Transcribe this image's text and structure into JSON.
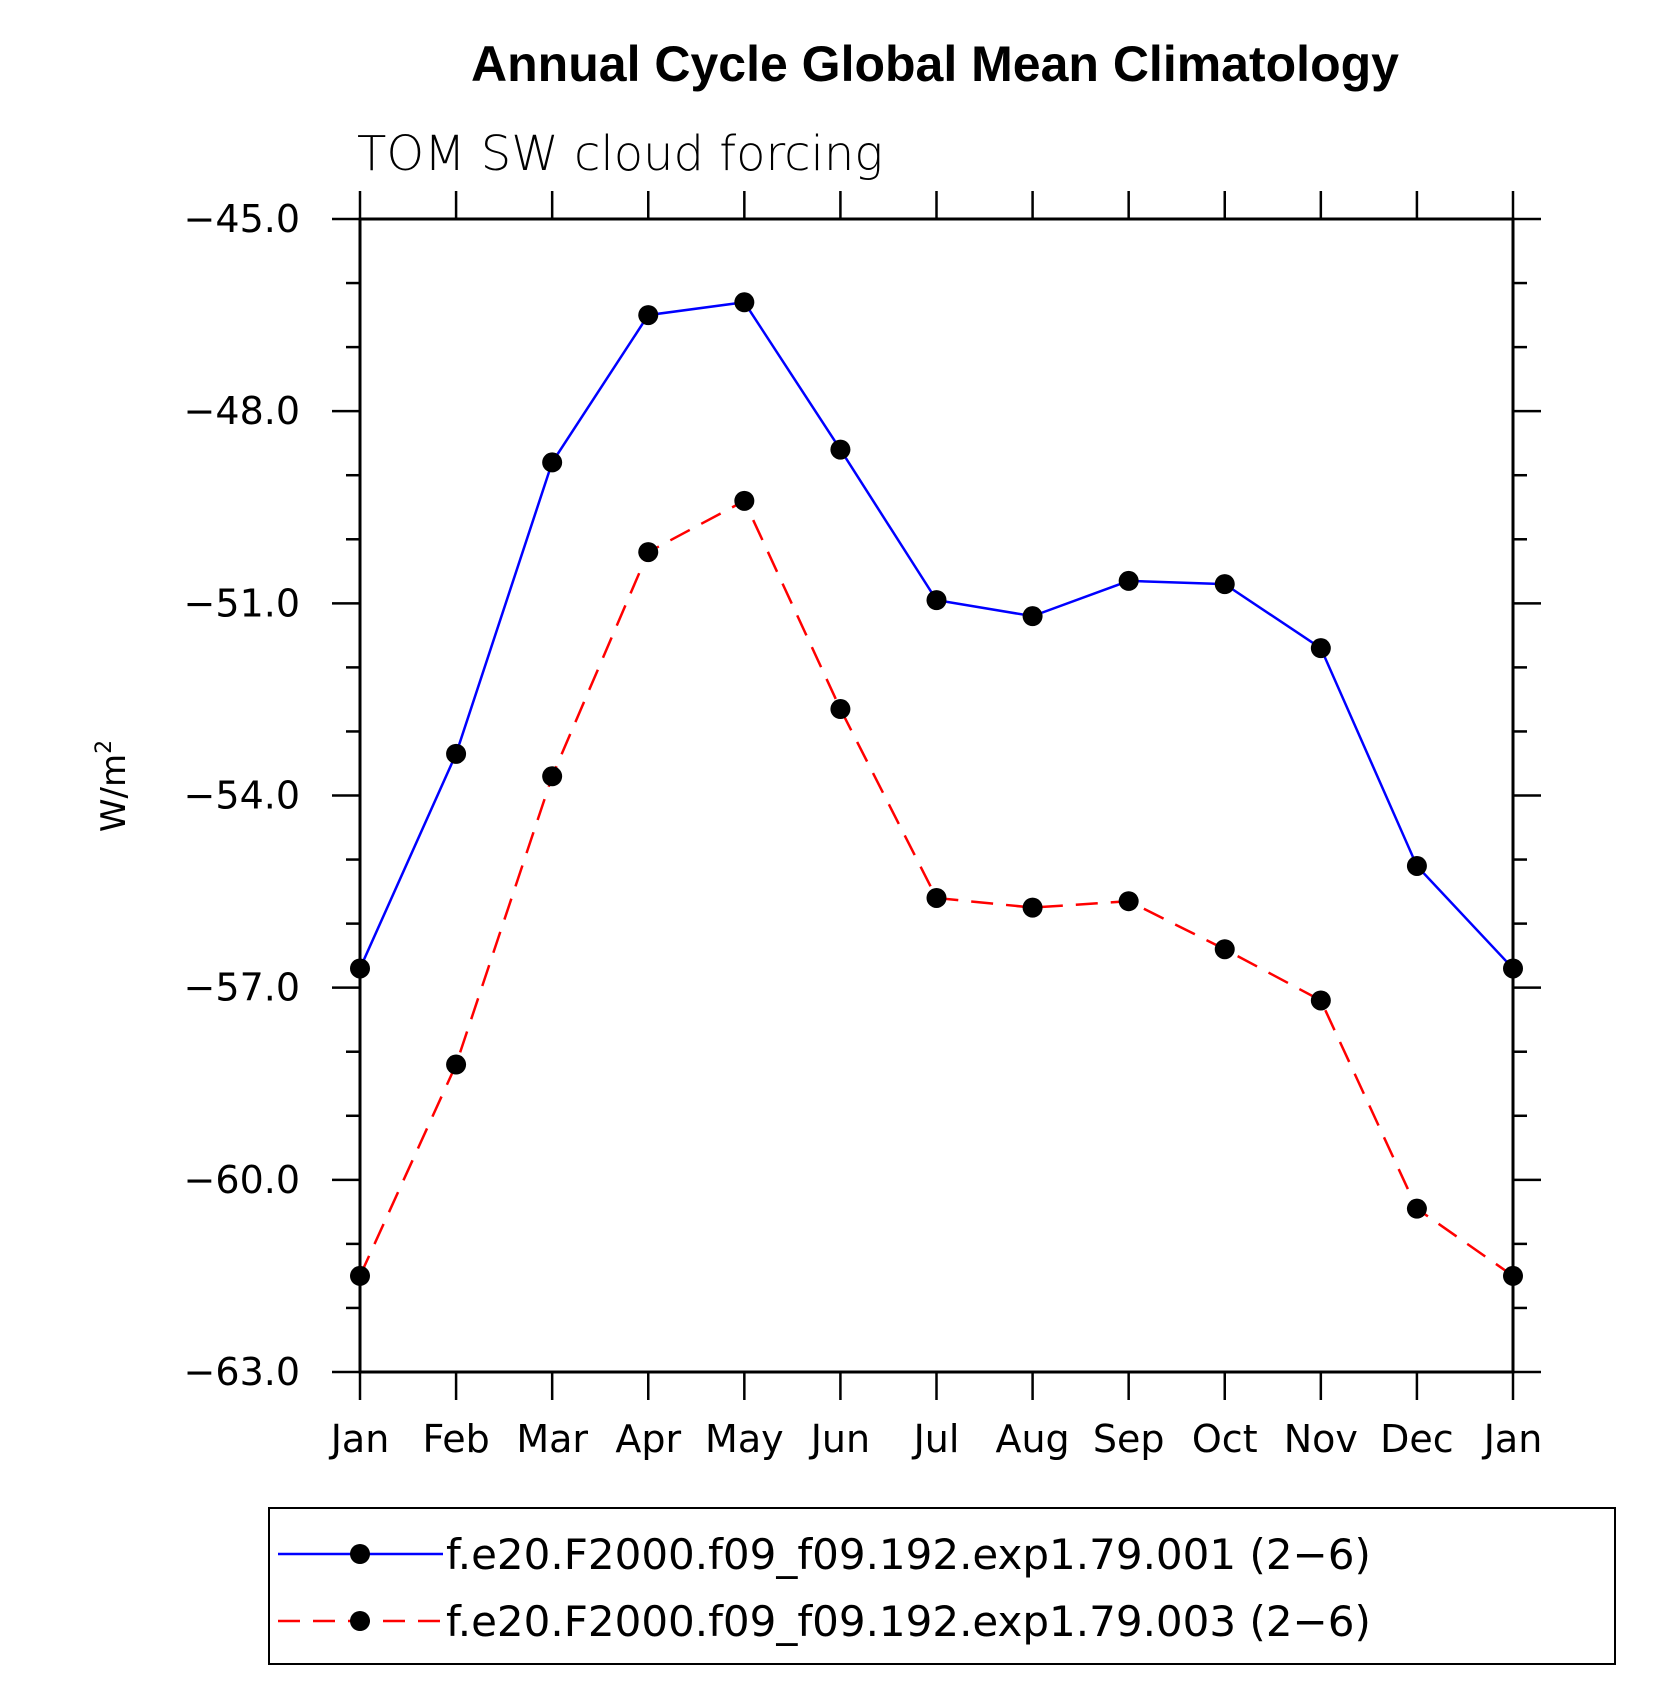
{
  "chart_data": {
    "type": "line",
    "title": "Annual Cycle Global Mean Climatology",
    "subtitle": "TOM SW cloud forcing",
    "ylabel": "W/m",
    "ylabel_sup": "2",
    "categories": [
      "Jan",
      "Feb",
      "Mar",
      "Apr",
      "May",
      "Jun",
      "Jul",
      "Aug",
      "Sep",
      "Oct",
      "Nov",
      "Dec",
      "Jan"
    ],
    "ylim": [
      -63.0,
      -45.0
    ],
    "yticks": [
      -45.0,
      -48.0,
      -51.0,
      -54.0,
      -57.0,
      -60.0,
      -63.0
    ],
    "ytick_labels": [
      "−45.0",
      "−48.0",
      "−51.0",
      "−54.0",
      "−57.0",
      "−60.0",
      "−63.0"
    ],
    "grid": false,
    "legend_position": "bottom",
    "series": [
      {
        "name": "f.e20.F2000.f09_f09.192.exp1.79.001 (2−6)",
        "color": "#0000ff",
        "style": "solid",
        "values": [
          -56.7,
          -53.35,
          -48.8,
          -46.5,
          -46.3,
          -48.6,
          -50.95,
          -51.2,
          -50.65,
          -50.7,
          -51.7,
          -55.1,
          -56.7
        ]
      },
      {
        "name": "f.e20.F2000.f09_f09.192.exp1.79.003 (2−6)",
        "color": "#ff0000",
        "style": "dashed",
        "values": [
          -61.5,
          -58.2,
          -53.7,
          -50.2,
          -49.4,
          -52.65,
          -55.6,
          -55.75,
          -55.65,
          -56.4,
          -57.2,
          -60.45,
          -61.5
        ]
      }
    ]
  }
}
